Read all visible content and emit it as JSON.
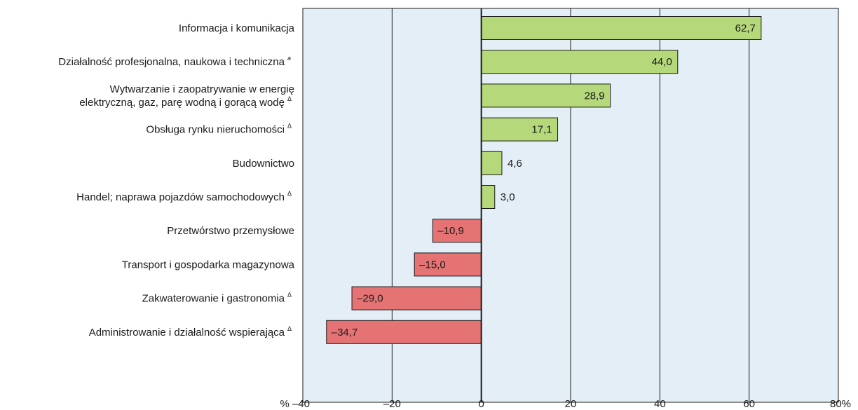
{
  "chart_data": {
    "type": "bar",
    "orientation": "horizontal",
    "categories": [
      {
        "label": [
          "Informacja i komunikacja"
        ],
        "marker": ""
      },
      {
        "label": [
          "Działalność profesjonalna, naukowa i techniczna"
        ],
        "marker": "a"
      },
      {
        "label": [
          "Wytwarzanie i zaopatrywanie w energię",
          "elektryczną, gaz, parę wodną i gorącą wodę"
        ],
        "marker": "Δ"
      },
      {
        "label": [
          "Obsługa rynku nieruchomości"
        ],
        "marker": "Δ"
      },
      {
        "label": [
          "Budownictwo"
        ],
        "marker": ""
      },
      {
        "label": [
          "Handel; naprawa pojazdów samochodowych"
        ],
        "marker": "Δ"
      },
      {
        "label": [
          "Przetwórstwo przemysłowe"
        ],
        "marker": ""
      },
      {
        "label": [
          "Transport i gospodarka magazynowa"
        ],
        "marker": ""
      },
      {
        "label": [
          "Zakwaterowanie i gastronomia"
        ],
        "marker": "Δ"
      },
      {
        "label": [
          "Administrowanie i działalność wspierająca"
        ],
        "marker": "Δ"
      }
    ],
    "values": [
      62.7,
      44.0,
      28.9,
      17.1,
      4.6,
      3.0,
      -10.9,
      -15.0,
      -29.0,
      -34.7
    ],
    "value_labels": [
      "62,7",
      "44,0",
      "28,9",
      "17,1",
      "4,6",
      "3,0",
      "–10,9",
      "–15,0",
      "–29,0",
      "–34,7"
    ],
    "xlim": [
      -40,
      80
    ],
    "ticks": [
      -40,
      -20,
      0,
      20,
      40,
      60,
      80
    ],
    "tick_labels": [
      "% –40",
      "–20",
      "0",
      "20",
      "40",
      "60",
      "80%"
    ],
    "grid": true,
    "colors": {
      "positive": "#b5d97a",
      "negative": "#e57373",
      "background": "#e3eef6",
      "grid": "#1a1a1a"
    }
  }
}
